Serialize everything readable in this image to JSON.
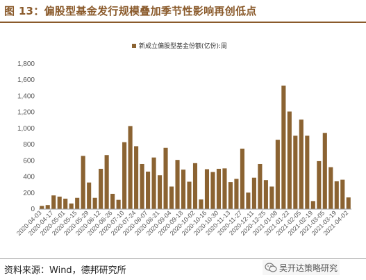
{
  "header": {
    "figure_label": "图 13：",
    "title": "偏股型基金发行规模叠加季节性影响再创低点"
  },
  "source": {
    "prefix": "资料来源：",
    "text": "Wind，德邦研究所"
  },
  "watermark": {
    "text": "吴开达策略研究",
    "icon": "wechat-icon"
  },
  "colors": {
    "accent": "#8a5a2b",
    "bar": "#8b6332",
    "axis_text": "#555555"
  },
  "chart_data": {
    "type": "bar",
    "legend": "新成立偏股型基金份额(亿份):周",
    "legend_position": "top-center",
    "ylim": [
      0,
      1800
    ],
    "yticks": [
      0,
      200,
      400,
      600,
      800,
      1000,
      1200,
      1400,
      1600,
      1800
    ],
    "ytick_labels": [
      "0",
      "200",
      "400",
      "600",
      "800",
      "1,000",
      "1,200",
      "1,400",
      "1,600",
      "1,800"
    ],
    "grid": false,
    "xtick_labels": [
      "2020-04-03",
      "2020-04-17",
      "2020-05-01",
      "2020-05-15",
      "2020-05-29",
      "2020-06-12",
      "2020-06-26",
      "2020-07-10",
      "2020-07-24",
      "2020-08-07",
      "2020-08-21",
      "2020-09-04",
      "2020-09-18",
      "2020-10-02",
      "2020-10-16",
      "2020-10-30",
      "2020-11-13",
      "2020-11-27",
      "2020-12-11",
      "2020-12-25",
      "2021-01-08",
      "2021-01-22",
      "2021-02-05",
      "2021-02-19",
      "2021-03-05",
      "2021-03-19",
      "2021-04-02"
    ],
    "categories": [
      "2020-04-03",
      "2020-04-10",
      "2020-04-17",
      "2020-04-24",
      "2020-05-01",
      "2020-05-08",
      "2020-05-15",
      "2020-05-22",
      "2020-05-29",
      "2020-06-05",
      "2020-06-12",
      "2020-06-19",
      "2020-06-26",
      "2020-07-03",
      "2020-07-10",
      "2020-07-17",
      "2020-07-24",
      "2020-07-31",
      "2020-08-07",
      "2020-08-14",
      "2020-08-21",
      "2020-08-28",
      "2020-09-04",
      "2020-09-11",
      "2020-09-18",
      "2020-09-25",
      "2020-10-02",
      "2020-10-09",
      "2020-10-16",
      "2020-10-23",
      "2020-10-30",
      "2020-11-06",
      "2020-11-13",
      "2020-11-20",
      "2020-11-27",
      "2020-12-04",
      "2020-12-11",
      "2020-12-18",
      "2020-12-25",
      "2021-01-01",
      "2021-01-08",
      "2021-01-15",
      "2021-01-22",
      "2021-01-29",
      "2021-02-05",
      "2021-02-12",
      "2021-02-19",
      "2021-02-26",
      "2021-03-05",
      "2021-03-12",
      "2021-03-19",
      "2021-03-26",
      "2021-04-02"
    ],
    "series": [
      {
        "name": "新成立偏股型基金份额(亿份):周",
        "values": [
          40,
          50,
          170,
          155,
          130,
          70,
          140,
          660,
          330,
          140,
          500,
          670,
          190,
          115,
          830,
          1030,
          780,
          560,
          465,
          640,
          420,
          760,
          280,
          610,
          490,
          340,
          570,
          120,
          495,
          460,
          500,
          505,
          335,
          375,
          750,
          205,
          390,
          560,
          360,
          280,
          860,
          1530,
          1210,
          910,
          1110,
          910,
          100,
          595,
          945,
          520,
          345,
          365,
          145
        ]
      }
    ]
  }
}
